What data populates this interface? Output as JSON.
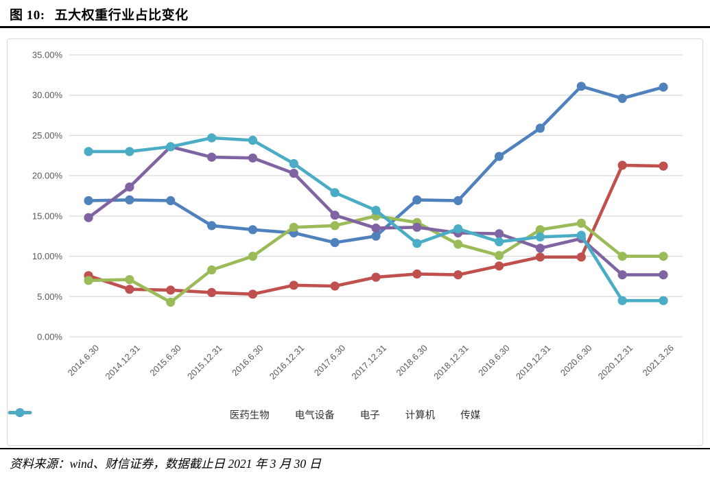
{
  "title": {
    "label": "图 10:",
    "text": "五大权重行业占比变化"
  },
  "footer": {
    "source": "资料来源：wind、财信证券，数据截止日 2021 年 3 月 30 日"
  },
  "palette": {
    "grid": "#d9d9d9",
    "axis_text": "#595959",
    "legend_text": "#333333"
  },
  "chart_data": {
    "type": "line",
    "title": "",
    "xlabel": "",
    "ylabel": "",
    "ylim": [
      0,
      35
    ],
    "y_tick_step": 5,
    "y_ticks": [
      "0.00%",
      "5.00%",
      "10.00%",
      "15.00%",
      "20.00%",
      "25.00%",
      "30.00%",
      "35.00%"
    ],
    "grid": true,
    "legend_position": "bottom",
    "marker": "circle",
    "categories": [
      "2014.6.30",
      "2014.12.31",
      "2015.6.30",
      "2015.12.31",
      "2016.6.30",
      "2016.12.31",
      "2017.6.30",
      "2017.12.31",
      "2018.6.30",
      "2018.12.31",
      "2019.6.30",
      "2019.12.31",
      "2020.6.30",
      "2020.12.31",
      "2021.3.26"
    ],
    "series": [
      {
        "name": "医药生物",
        "color": "#4F81BD",
        "values": [
          16.9,
          17.0,
          16.9,
          13.8,
          13.3,
          12.9,
          11.7,
          12.5,
          17.0,
          16.9,
          22.4,
          25.9,
          31.1,
          29.6,
          31.0
        ]
      },
      {
        "name": "电气设备",
        "color": "#C0504D",
        "values": [
          7.6,
          5.9,
          5.8,
          5.5,
          5.3,
          6.4,
          6.3,
          7.4,
          7.8,
          7.7,
          8.8,
          9.9,
          9.9,
          21.3,
          21.2
        ]
      },
      {
        "name": "电子",
        "color": "#9BBB59",
        "values": [
          7.0,
          7.1,
          4.3,
          8.3,
          10.0,
          13.6,
          13.8,
          15.0,
          14.2,
          11.5,
          10.1,
          13.3,
          14.1,
          10.0,
          10.0
        ]
      },
      {
        "name": "计算机",
        "color": "#8064A2",
        "values": [
          14.8,
          18.6,
          23.6,
          22.3,
          22.2,
          20.3,
          15.1,
          13.5,
          13.6,
          12.9,
          12.8,
          11.0,
          12.2,
          7.7,
          7.7
        ]
      },
      {
        "name": "传媒",
        "color": "#4BACC6",
        "values": [
          23.0,
          23.0,
          23.6,
          24.7,
          24.4,
          21.5,
          17.9,
          15.7,
          11.6,
          13.4,
          11.8,
          12.4,
          12.6,
          4.5,
          4.5
        ]
      }
    ]
  }
}
